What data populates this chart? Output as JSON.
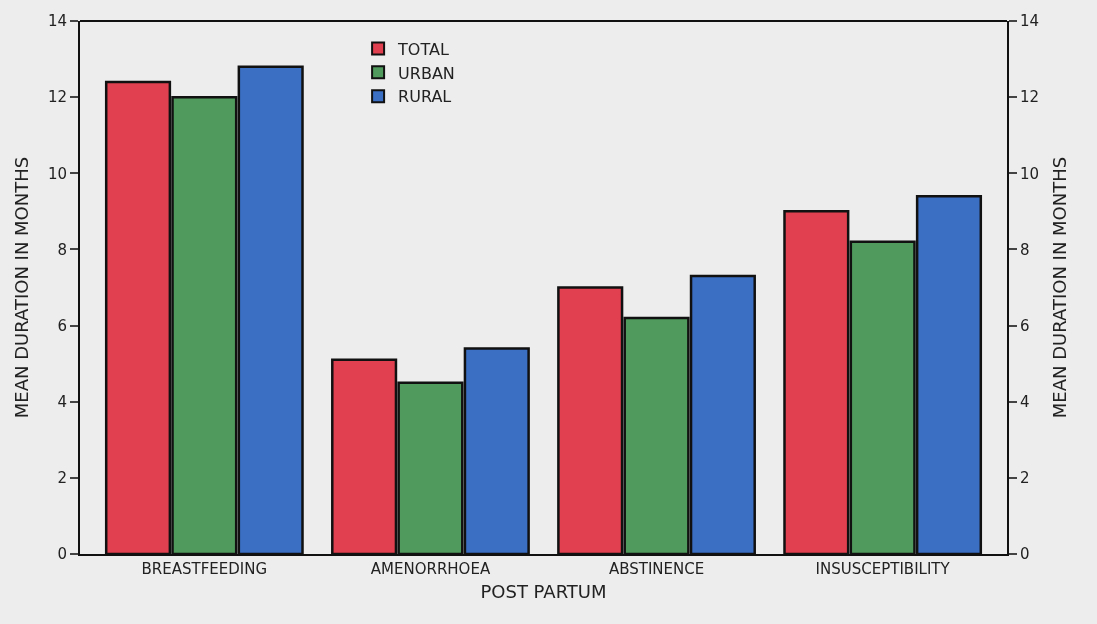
{
  "chart_data": {
    "type": "bar",
    "categories": [
      "BREASTFEEDING",
      "AMENORRHOEA",
      "ABSTINENCE",
      "INSUSCEPTIBILITY"
    ],
    "series": [
      {
        "name": "TOTAL",
        "color": "#e0404f",
        "values": [
          12.4,
          5.1,
          7.0,
          9.0
        ]
      },
      {
        "name": "URBAN",
        "color": "#4f9a5c",
        "values": [
          12.0,
          4.5,
          6.2,
          8.2
        ]
      },
      {
        "name": "RURAL",
        "color": "#3a6fc4",
        "values": [
          12.8,
          5.4,
          7.3,
          9.4
        ]
      }
    ],
    "xlabel": "POST PARTUM",
    "ylabel": "MEAN DURATION IN MONTHS",
    "y2label": "MEAN DURATION IN MONTHS",
    "ylim": [
      0,
      14
    ],
    "yticks": [
      0,
      2,
      4,
      6,
      8,
      10,
      12,
      14
    ],
    "y2lim": [
      0,
      14
    ],
    "y2ticks": [
      0,
      2,
      4,
      6,
      8,
      10,
      12,
      14
    ],
    "grid": false,
    "legend": "top"
  }
}
